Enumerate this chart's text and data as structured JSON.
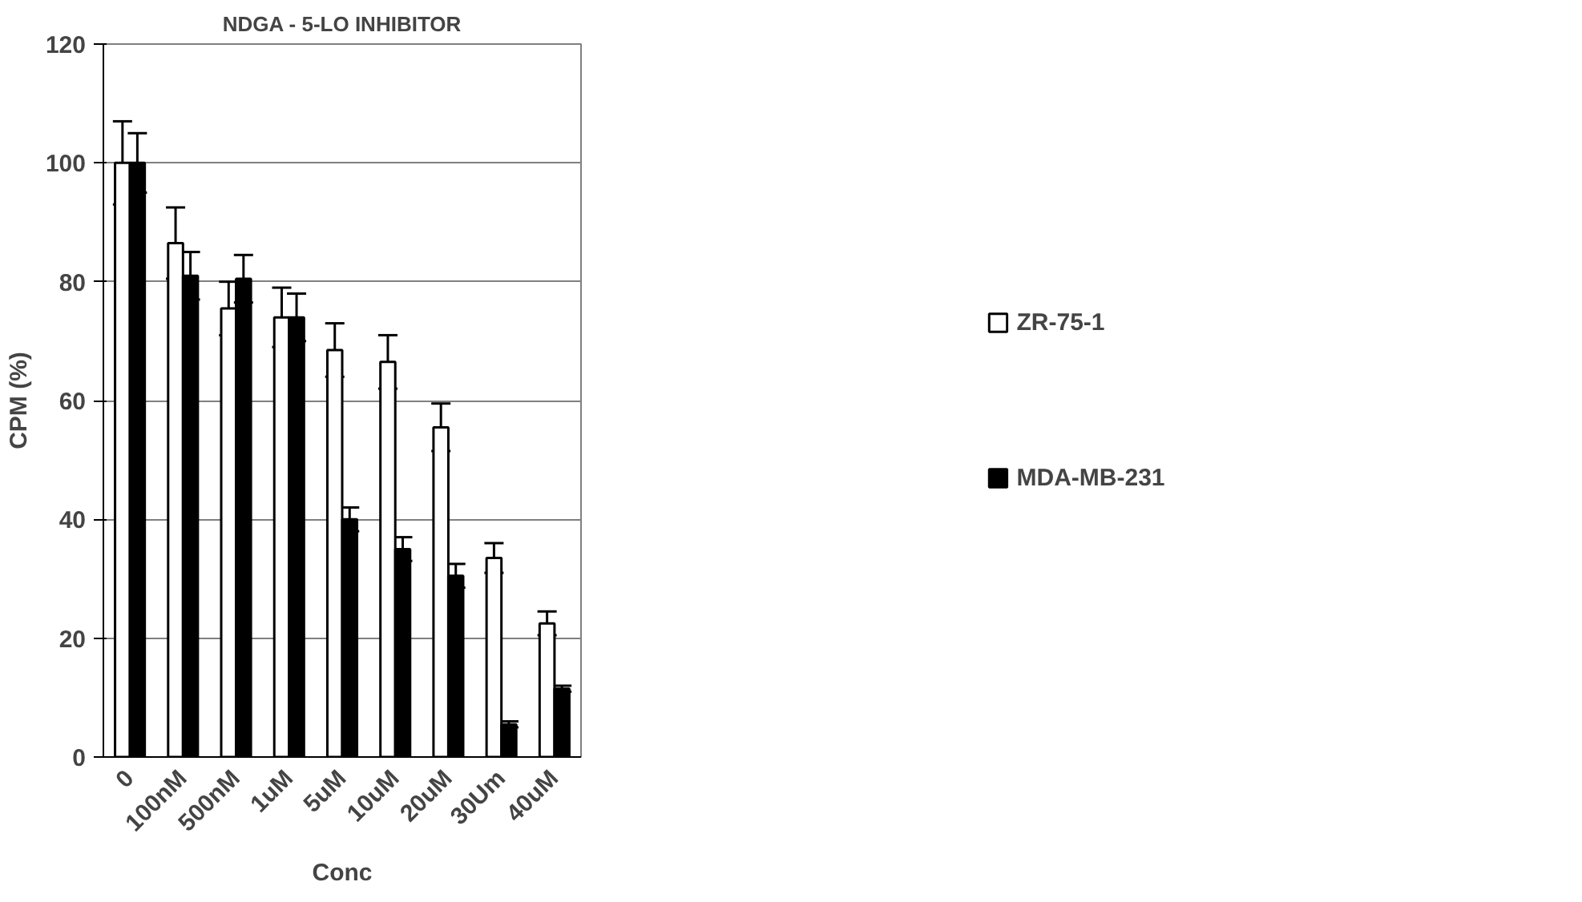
{
  "chart_data": {
    "type": "bar",
    "title": "NDGA - 5-LO INHIBITOR",
    "xlabel": "Conc",
    "ylabel": "CPM (%)",
    "categories": [
      "0",
      "100nM",
      "500nM",
      "1uM",
      "5uM",
      "10uM",
      "20uM",
      "30Um",
      "40uM"
    ],
    "series": [
      {
        "name": "ZR-75-1",
        "color": "#ffffff",
        "values": [
          100,
          86.5,
          75.5,
          74,
          68.5,
          66.5,
          55.5,
          33.5,
          22.5
        ],
        "errors": [
          7,
          6,
          4.5,
          5,
          4.5,
          4.5,
          4,
          2.5,
          2
        ]
      },
      {
        "name": "MDA-MB-231",
        "color": "#000000",
        "values": [
          100,
          81,
          80.5,
          74,
          40,
          35,
          30.5,
          5.5,
          11.5
        ],
        "errors": [
          5,
          4,
          4,
          4,
          2,
          2,
          2,
          0.5,
          0.5
        ]
      }
    ],
    "ylim": [
      0,
      120
    ],
    "yticks": [
      0,
      20,
      40,
      60,
      80,
      100,
      120
    ],
    "grid": "y",
    "legend": "right"
  }
}
